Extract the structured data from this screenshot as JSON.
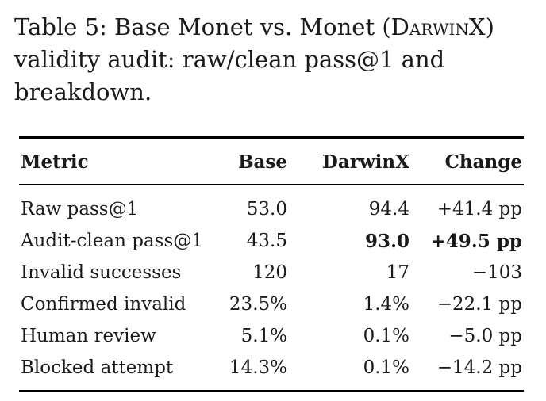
{
  "caption": {
    "prefix": "Table 5: Base Monet vs. Monet (",
    "smallcaps": "DarwinX",
    "suffix": ") validity audit: raw/clean pass@1 and breakdown."
  },
  "table": {
    "headers": [
      "Metric",
      "Base",
      "DarwinX",
      "Change"
    ],
    "rows": [
      {
        "metric": "Raw pass@1",
        "base": "53.0",
        "darwinx": "94.4",
        "change": "+41.4 pp"
      },
      {
        "metric": "Audit-clean pass@1",
        "base": "43.5",
        "darwinx": "93.0",
        "change": "+49.5 pp"
      },
      {
        "metric": "Invalid successes",
        "base": "120",
        "darwinx": "17",
        "change": "−103"
      },
      {
        "metric": "Confirmed invalid",
        "base": "23.5%",
        "darwinx": "1.4%",
        "change": "−22.1 pp"
      },
      {
        "metric": "Human review",
        "base": "5.1%",
        "darwinx": "0.1%",
        "change": "−5.0 pp"
      },
      {
        "metric": "Blocked attempt",
        "base": "14.3%",
        "darwinx": "0.1%",
        "change": "−14.2 pp"
      }
    ]
  }
}
